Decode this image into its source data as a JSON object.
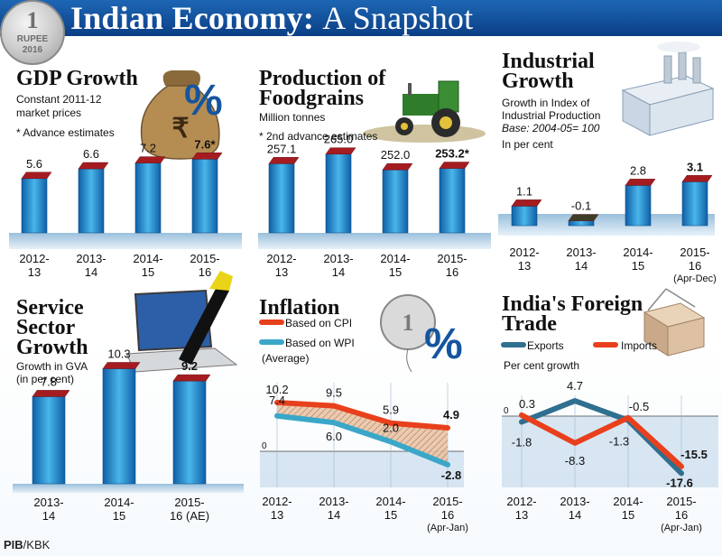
{
  "banner": {
    "title_bold": "Indian Economy:",
    "title_light": "A Snapshot"
  },
  "coin": {
    "value": "1",
    "name": "RUPEE",
    "year": "2016"
  },
  "icons": {
    "percent": "%"
  },
  "credit": {
    "org": "PIB",
    "sep": "/",
    "agency": "KBK"
  },
  "gdp": {
    "title": "GDP Growth",
    "sub1": "Constant 2011-12",
    "sub2": "market prices",
    "note": "* Advance estimates"
  },
  "food": {
    "title1": "Production of",
    "title2": "Foodgrains",
    "sub1": "Million tonnes",
    "note": "* 2nd advance estimates"
  },
  "industry": {
    "title1": "Industrial",
    "title2": "Growth",
    "sub1": "Growth in Index of",
    "sub2": "Industrial Production",
    "base": "Base: 2004-05= 100",
    "sub3": "In per cent"
  },
  "service": {
    "title1": "Service",
    "title2": "Sector",
    "title3": "Growth",
    "sub1": "Growth in GVA",
    "sub2": "(in per cent)"
  },
  "inflation": {
    "title": "Inflation",
    "cpi_label": "Based on CPI",
    "wpi_label": "Based on WPI",
    "wpi_note": "(Average)"
  },
  "trade": {
    "title1": "India's Foreign",
    "title2": "Trade",
    "exports_label": "Exports",
    "imports_label": "Imports",
    "sub1": "Per cent growth"
  },
  "colors": {
    "bar": "#2f8fd2",
    "bar_top": "#a51c20",
    "cpi": "#e8401c",
    "wpi": "#3aa7c9",
    "exports": "#2f6f8f",
    "imports": "#e8401c"
  },
  "chart_data": [
    {
      "id": "gdp",
      "type": "bar",
      "title": "GDP Growth",
      "categories": [
        "2012-13",
        "2013-14",
        "2014-15",
        "2015-16"
      ],
      "values": [
        5.6,
        6.6,
        7.2,
        7.6
      ],
      "labels": [
        "5.6",
        "6.6",
        "7.2",
        "7.6*"
      ],
      "ylim": [
        0,
        8
      ]
    },
    {
      "id": "food",
      "type": "bar",
      "title": "Production of Foodgrains",
      "categories": [
        "2012-13",
        "2013-14",
        "2014-15",
        "2015-16"
      ],
      "values": [
        257.1,
        265.0,
        252.0,
        253.2
      ],
      "labels": [
        "257.1",
        "265.0",
        "252.0",
        "253.2*"
      ],
      "ylim": [
        200,
        270
      ]
    },
    {
      "id": "iip",
      "type": "bar",
      "title": "Industrial Growth",
      "categories": [
        "2012-13",
        "2013-14",
        "2014-15",
        "2015-16"
      ],
      "cat_notes": [
        "",
        "",
        "",
        "(Apr-Dec)"
      ],
      "values": [
        1.1,
        -0.1,
        2.8,
        3.1
      ],
      "labels": [
        "1.1",
        "-0.1",
        "2.8",
        "3.1"
      ],
      "ylim": [
        -0.5,
        3.2
      ]
    },
    {
      "id": "service",
      "type": "bar",
      "title": "Service Sector Growth",
      "categories": [
        "2013-14",
        "2014-15",
        "2015-16 (AE)"
      ],
      "values": [
        7.8,
        10.3,
        9.2
      ],
      "labels": [
        "7.8",
        "10.3",
        "9.2"
      ],
      "ylim": [
        0,
        10.5
      ]
    },
    {
      "id": "inflation",
      "type": "line",
      "title": "Inflation",
      "categories": [
        "2012-13",
        "2013-14",
        "2014-15",
        "2015-16"
      ],
      "cat_notes": [
        "",
        "",
        "",
        "(Apr-Jan)"
      ],
      "series": [
        {
          "name": "Based on CPI",
          "values": [
            10.2,
            9.5,
            5.9,
            4.9
          ]
        },
        {
          "name": "Based on WPI",
          "values": [
            7.4,
            6.0,
            2.0,
            -2.8
          ]
        }
      ],
      "zero_label": "0",
      "ylim": [
        -3,
        11
      ]
    },
    {
      "id": "trade",
      "type": "line",
      "title": "India's Foreign Trade",
      "categories": [
        "2012-13",
        "2013-14",
        "2014-15",
        "2015-16"
      ],
      "cat_notes": [
        "",
        "",
        "",
        "(Apr-Jan)"
      ],
      "series": [
        {
          "name": "Exports",
          "values": [
            -1.8,
            4.7,
            -1.3,
            -17.6
          ]
        },
        {
          "name": "Imports",
          "values": [
            0.3,
            -8.3,
            -0.5,
            -15.5
          ]
        }
      ],
      "zero_label": "0",
      "ylim": [
        -18,
        6
      ]
    }
  ]
}
